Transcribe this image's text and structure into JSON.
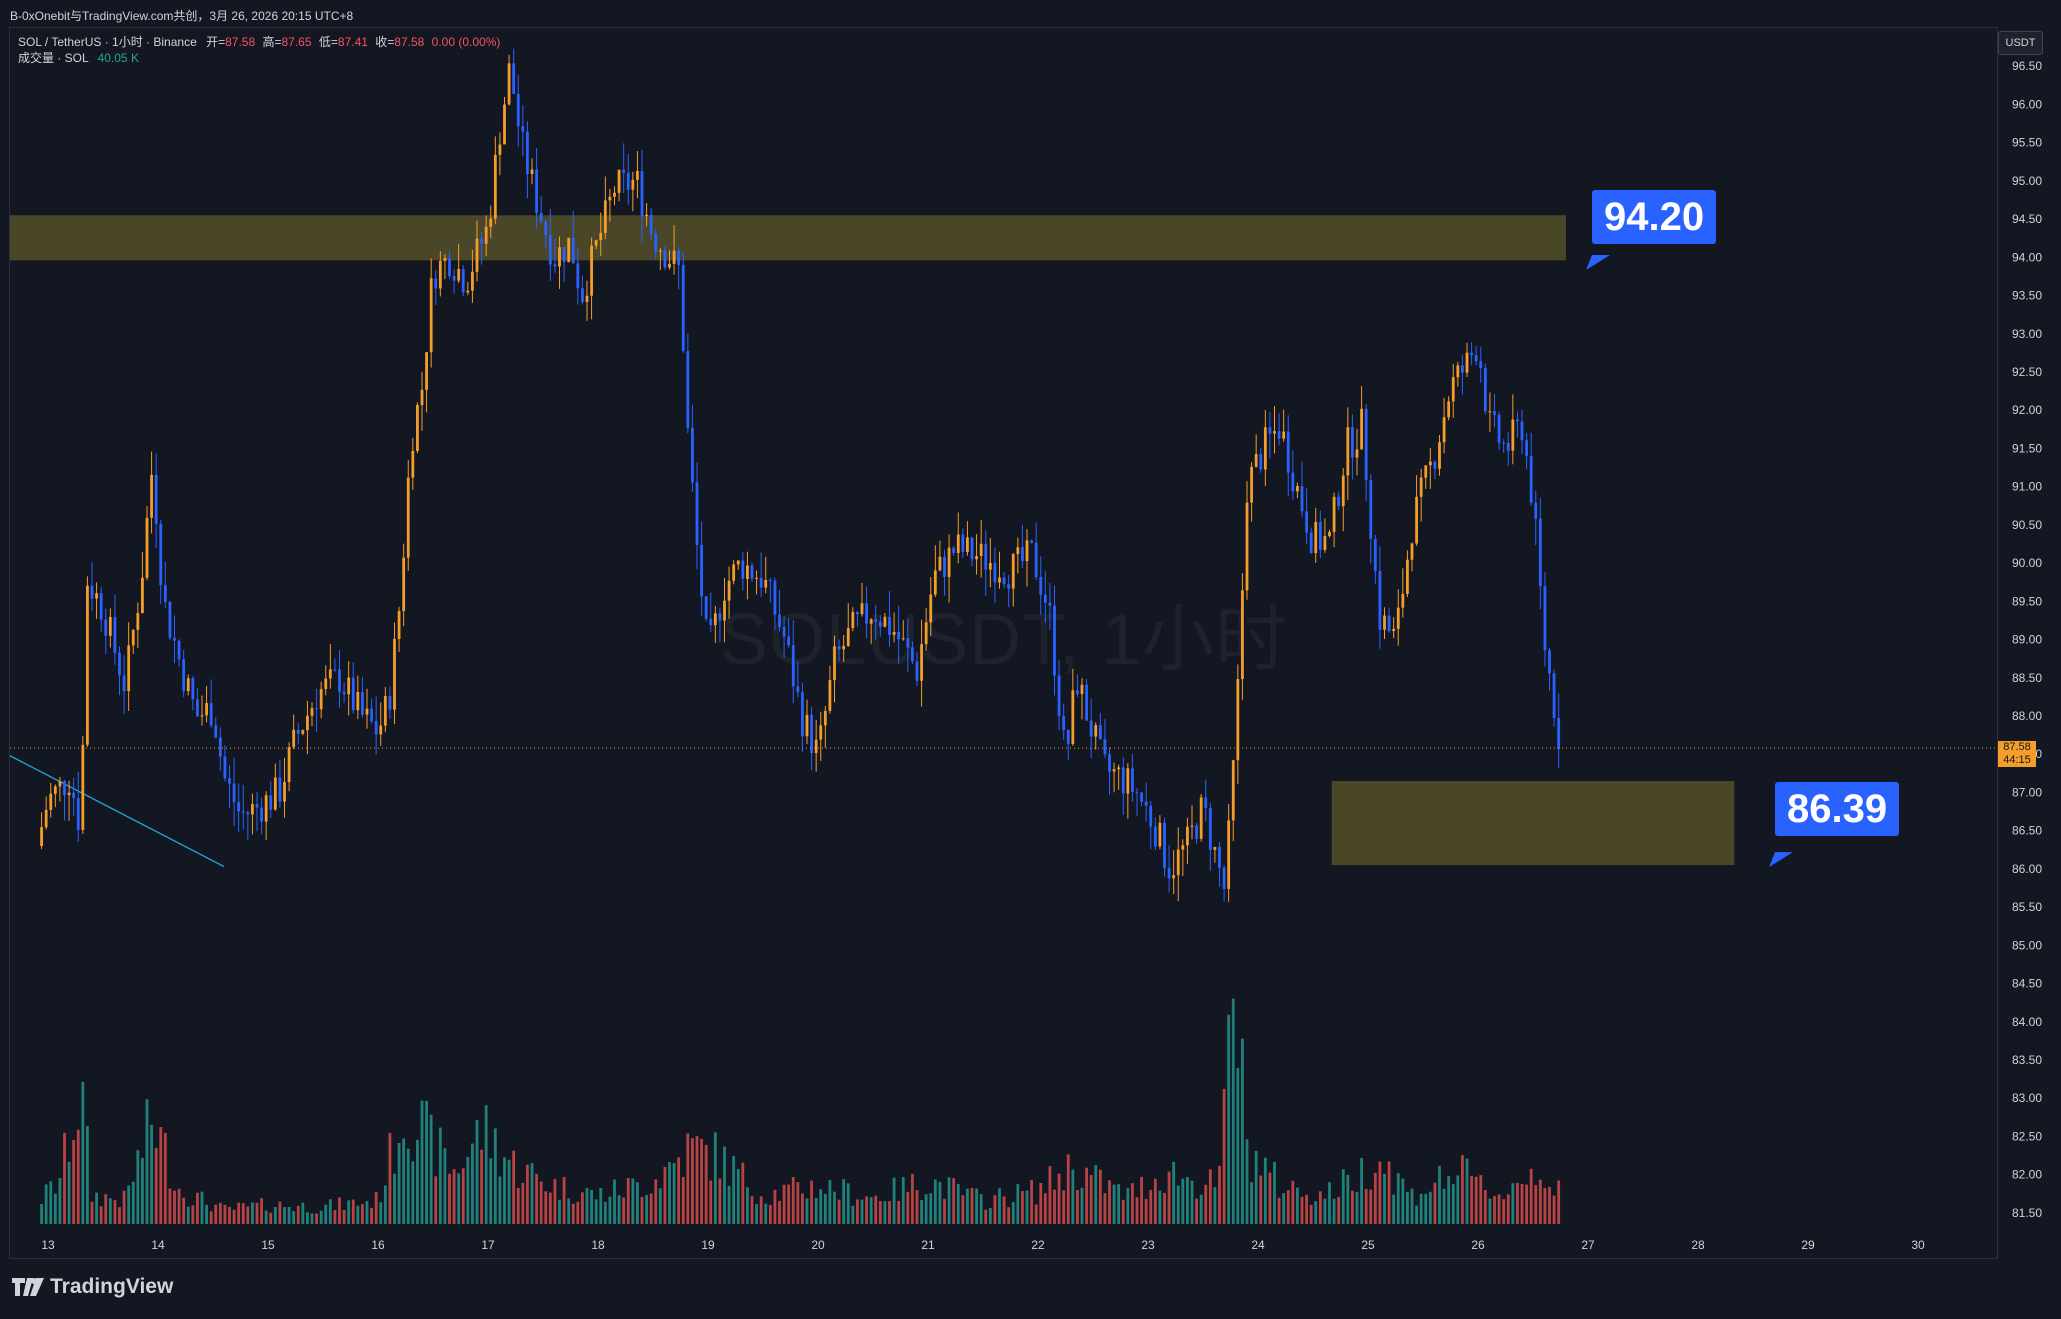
{
  "topbar": {
    "text": "B-0xOnebit与TradingView.com共创，3月 26, 2026 20:15 UTC+8"
  },
  "legend": {
    "symbol": "SOL / TetherUS · 1小时 · Binance",
    "ohlc": {
      "open_label": "开=",
      "open": "87.58",
      "high_label": "高=",
      "high": "87.65",
      "low_label": "低=",
      "low": "87.41",
      "close_label": "收=",
      "close": "87.58",
      "change": "0.00 (0.00%)"
    },
    "volume_label": "成交量 · SOL",
    "volume": "40.05 K"
  },
  "currency_button": "USDT",
  "watermark": "SOLUSDT, 1小时",
  "brand": "TradingView",
  "colors": {
    "background": "#131722",
    "up": "#f59d29",
    "down": "#2962ff",
    "vol_up": "#26a69a",
    "vol_down": "#ef5350",
    "zone": "#4a4628",
    "trendline": "#22a7dd",
    "callout": "#2962ff"
  },
  "chart_data": {
    "type": "candlestick",
    "ylim": [
      81.25,
      97.0
    ],
    "y_ticks": [
      "96.50",
      "96.00",
      "95.50",
      "95.00",
      "94.50",
      "94.00",
      "93.50",
      "93.00",
      "92.50",
      "92.00",
      "91.50",
      "91.00",
      "90.50",
      "90.00",
      "89.50",
      "89.00",
      "88.50",
      "88.00",
      "87.50",
      "87.00",
      "86.50",
      "86.00",
      "85.50",
      "85.00",
      "84.50",
      "84.00",
      "83.50",
      "83.00",
      "82.50",
      "82.00",
      "81.50"
    ],
    "x_ticks": [
      "13",
      "14",
      "15",
      "16",
      "17",
      "18",
      "19",
      "20",
      "21",
      "22",
      "23",
      "24",
      "25",
      "26",
      "27",
      "28",
      "29",
      "30"
    ],
    "last_price": "87.58",
    "countdown": "44:15",
    "price_path": [
      [
        12.9,
        86.3
      ],
      [
        13.0,
        86.9
      ],
      [
        13.2,
        87.2
      ],
      [
        13.3,
        86.5
      ],
      [
        13.35,
        89.8
      ],
      [
        13.5,
        89.4
      ],
      [
        13.7,
        88.4
      ],
      [
        13.85,
        89.8
      ],
      [
        13.95,
        91.3
      ],
      [
        14.05,
        89.5
      ],
      [
        14.2,
        88.7
      ],
      [
        14.35,
        88.0
      ],
      [
        14.5,
        88.1
      ],
      [
        14.6,
        87.2
      ],
      [
        14.75,
        86.7
      ],
      [
        14.9,
        86.8
      ],
      [
        15.1,
        87.0
      ],
      [
        15.25,
        87.7
      ],
      [
        15.45,
        88.3
      ],
      [
        15.65,
        88.5
      ],
      [
        15.85,
        88.0
      ],
      [
        16.0,
        87.8
      ],
      [
        16.1,
        88.2
      ],
      [
        16.2,
        89.5
      ],
      [
        16.3,
        91.6
      ],
      [
        16.4,
        92.3
      ],
      [
        16.5,
        93.8
      ],
      [
        16.65,
        94.0
      ],
      [
        16.8,
        93.7
      ],
      [
        17.0,
        94.4
      ],
      [
        17.1,
        95.6
      ],
      [
        17.2,
        96.5
      ],
      [
        17.3,
        95.5
      ],
      [
        17.45,
        94.7
      ],
      [
        17.6,
        94.0
      ],
      [
        17.75,
        94.2
      ],
      [
        17.85,
        93.5
      ],
      [
        18.0,
        94.2
      ],
      [
        18.15,
        94.9
      ],
      [
        18.35,
        95.0
      ],
      [
        18.5,
        94.3
      ],
      [
        18.65,
        94.0
      ],
      [
        18.75,
        93.8
      ],
      [
        18.8,
        92.0
      ],
      [
        18.9,
        90.2
      ],
      [
        19.0,
        88.8
      ],
      [
        19.15,
        89.7
      ],
      [
        19.3,
        90.0
      ],
      [
        19.5,
        89.8
      ],
      [
        19.7,
        89.0
      ],
      [
        19.85,
        88.0
      ],
      [
        20.0,
        87.5
      ],
      [
        20.15,
        88.7
      ],
      [
        20.3,
        89.1
      ],
      [
        20.5,
        89.4
      ],
      [
        20.7,
        89.1
      ],
      [
        20.9,
        88.6
      ],
      [
        21.05,
        89.8
      ],
      [
        21.25,
        90.2
      ],
      [
        21.45,
        90.1
      ],
      [
        21.6,
        90.0
      ],
      [
        21.75,
        89.9
      ],
      [
        21.95,
        90.1
      ],
      [
        22.1,
        89.4
      ],
      [
        22.25,
        87.4
      ],
      [
        22.35,
        88.5
      ],
      [
        22.45,
        88.0
      ],
      [
        22.6,
        87.3
      ],
      [
        22.75,
        87.2
      ],
      [
        22.9,
        87.0
      ],
      [
        23.05,
        86.6
      ],
      [
        23.2,
        86.0
      ],
      [
        23.35,
        86.3
      ],
      [
        23.5,
        86.8
      ],
      [
        23.7,
        85.7
      ],
      [
        23.8,
        87.8
      ],
      [
        23.9,
        91.0
      ],
      [
        24.05,
        91.5
      ],
      [
        24.2,
        91.8
      ],
      [
        24.35,
        91.0
      ],
      [
        24.5,
        90.3
      ],
      [
        24.65,
        90.3
      ],
      [
        24.8,
        91.5
      ],
      [
        24.95,
        91.8
      ],
      [
        25.1,
        89.3
      ],
      [
        25.25,
        89.0
      ],
      [
        25.4,
        90.5
      ],
      [
        25.6,
        91.4
      ],
      [
        25.75,
        92.3
      ],
      [
        25.9,
        92.6
      ],
      [
        26.0,
        92.9
      ],
      [
        26.1,
        91.8
      ],
      [
        26.25,
        91.5
      ],
      [
        26.4,
        91.8
      ],
      [
        26.5,
        90.8
      ],
      [
        26.6,
        89.0
      ],
      [
        26.75,
        87.6
      ]
    ],
    "volume_path": [
      [
        12.9,
        22
      ],
      [
        13.1,
        45
      ],
      [
        13.3,
        140
      ],
      [
        13.4,
        30
      ],
      [
        13.7,
        25
      ],
      [
        13.95,
        110
      ],
      [
        14.2,
        35
      ],
      [
        14.6,
        15
      ],
      [
        15.0,
        20
      ],
      [
        15.5,
        18
      ],
      [
        16.0,
        25
      ],
      [
        16.25,
        125
      ],
      [
        16.45,
        90
      ],
      [
        16.7,
        55
      ],
      [
        16.95,
        100
      ],
      [
        17.25,
        60
      ],
      [
        17.6,
        40
      ],
      [
        18.0,
        30
      ],
      [
        18.5,
        45
      ],
      [
        18.85,
        80
      ],
      [
        19.1,
        70
      ],
      [
        19.5,
        30
      ],
      [
        20.0,
        40
      ],
      [
        20.5,
        28
      ],
      [
        21.0,
        45
      ],
      [
        21.5,
        25
      ],
      [
        22.0,
        35
      ],
      [
        22.3,
        60
      ],
      [
        22.8,
        30
      ],
      [
        23.2,
        55
      ],
      [
        23.5,
        40
      ],
      [
        23.65,
        45
      ],
      [
        23.78,
        265
      ],
      [
        23.9,
        80
      ],
      [
        24.2,
        40
      ],
      [
        24.6,
        30
      ],
      [
        24.9,
        50
      ],
      [
        25.1,
        70
      ],
      [
        25.4,
        30
      ],
      [
        25.8,
        55
      ],
      [
        26.2,
        30
      ],
      [
        26.55,
        60
      ],
      [
        26.75,
        30
      ]
    ]
  },
  "annotations": {
    "upper_level": "94.20",
    "lower_level": "86.39"
  }
}
